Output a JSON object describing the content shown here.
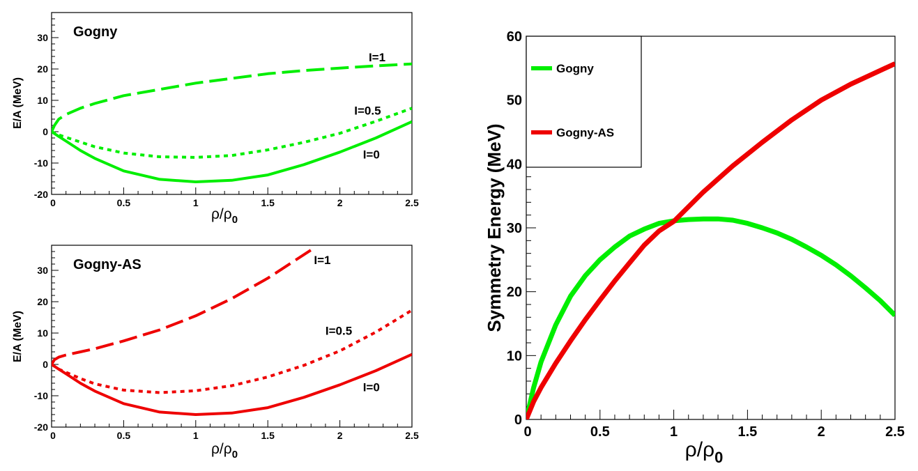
{
  "chart_data": [
    {
      "type": "line",
      "id": "gogny",
      "title": "Gogny",
      "xlabel": "ρ/ρ",
      "xlabel_sub": "0",
      "ylabel": "E/A (MeV)",
      "xlim": [
        0,
        2.5
      ],
      "ylim": [
        -20,
        38
      ],
      "xticks": [
        0,
        0.5,
        1,
        1.5,
        2,
        2.5
      ],
      "xtick_labels": [
        "0",
        "0.5",
        "1",
        "1.5",
        "2",
        "2.5"
      ],
      "yticks": [
        -20,
        -10,
        0,
        10,
        20,
        30
      ],
      "ytick_labels": [
        "-20",
        "-10",
        "0",
        "10",
        "20",
        "30"
      ],
      "series": [
        {
          "name": "I=1",
          "color": "#00ee00",
          "dash": "long",
          "x": [
            0,
            0.02,
            0.05,
            0.1,
            0.2,
            0.3,
            0.5,
            0.75,
            1.0,
            1.25,
            1.5,
            1.75,
            2.0,
            2.25,
            2.5
          ],
          "y": [
            0,
            2,
            4,
            5.5,
            7.5,
            9,
            11.5,
            13.5,
            15.5,
            17,
            18.5,
            19.5,
            20.3,
            21,
            21.6
          ]
        },
        {
          "name": "I=0.5",
          "color": "#00ee00",
          "dash": "dot",
          "x": [
            0,
            0.05,
            0.1,
            0.2,
            0.3,
            0.5,
            0.75,
            1.0,
            1.25,
            1.5,
            1.75,
            2.0,
            2.25,
            2.5
          ],
          "y": [
            0,
            -1,
            -1.8,
            -3.3,
            -4.8,
            -6.8,
            -8.0,
            -8.2,
            -7.6,
            -5.8,
            -3.4,
            -0.5,
            3.3,
            7.5
          ]
        },
        {
          "name": "I=0",
          "color": "#00ee00",
          "dash": "solid",
          "x": [
            0,
            0.05,
            0.1,
            0.2,
            0.3,
            0.5,
            0.75,
            1.0,
            1.25,
            1.5,
            1.75,
            2.0,
            2.25,
            2.5
          ],
          "y": [
            0,
            -1.5,
            -3,
            -6,
            -8.5,
            -12.5,
            -15.2,
            -16.0,
            -15.5,
            -13.8,
            -10.5,
            -6.5,
            -2.0,
            3.2
          ]
        }
      ],
      "annotations": [
        {
          "text": "I=1",
          "x": 2.2,
          "y": 22.5
        },
        {
          "text": "I=0.5",
          "x": 2.1,
          "y": 5.5
        },
        {
          "text": "I=0",
          "x": 2.16,
          "y": -8.5
        }
      ]
    },
    {
      "type": "line",
      "id": "gogny-as",
      "title": "Gogny-AS",
      "xlabel": "ρ/ρ",
      "xlabel_sub": "0",
      "ylabel": "E/A (MeV)",
      "xlim": [
        0,
        2.5
      ],
      "ylim": [
        -20,
        38
      ],
      "xticks": [
        0,
        0.5,
        1,
        1.5,
        2,
        2.5
      ],
      "xtick_labels": [
        "0",
        "0.5",
        "1",
        "1.5",
        "2",
        "2.5"
      ],
      "yticks": [
        -20,
        -10,
        0,
        10,
        20,
        30
      ],
      "ytick_labels": [
        "-20",
        "-10",
        "0",
        "10",
        "20",
        "30"
      ],
      "series": [
        {
          "name": "I=1",
          "color": "#ee0000",
          "dash": "long",
          "x": [
            0,
            0.02,
            0.05,
            0.1,
            0.2,
            0.3,
            0.5,
            0.75,
            1.0,
            1.25,
            1.5,
            1.8
          ],
          "y": [
            0,
            1.5,
            2.3,
            3.0,
            4.0,
            5.0,
            7.5,
            11.0,
            15.5,
            21.0,
            27.5,
            36.5
          ]
        },
        {
          "name": "I=0.5",
          "color": "#ee0000",
          "dash": "dot",
          "x": [
            0,
            0.05,
            0.1,
            0.2,
            0.3,
            0.5,
            0.75,
            1.0,
            1.25,
            1.5,
            1.75,
            2.0,
            2.25,
            2.5
          ],
          "y": [
            0,
            -1.5,
            -2.5,
            -4.5,
            -6.2,
            -8.2,
            -9.0,
            -8.4,
            -6.8,
            -4.0,
            -0.3,
            4.3,
            10.3,
            17.3
          ]
        },
        {
          "name": "I=0",
          "color": "#ee0000",
          "dash": "solid",
          "x": [
            0,
            0.05,
            0.1,
            0.2,
            0.3,
            0.5,
            0.75,
            1.0,
            1.25,
            1.5,
            1.75,
            2.0,
            2.25,
            2.5
          ],
          "y": [
            0,
            -1.5,
            -3,
            -6,
            -8.5,
            -12.5,
            -15.2,
            -16.0,
            -15.5,
            -13.8,
            -10.5,
            -6.5,
            -2.0,
            3.2
          ]
        }
      ],
      "annotations": [
        {
          "text": "I=1",
          "x": 1.82,
          "y": 32
        },
        {
          "text": "I=0.5",
          "x": 1.9,
          "y": 9.5
        },
        {
          "text": "I=0",
          "x": 2.16,
          "y": -8.5
        }
      ]
    },
    {
      "type": "line",
      "id": "symmetry",
      "title": "",
      "xlabel": "ρ/ρ",
      "xlabel_sub": "0",
      "ylabel": "Symmetry Energy (MeV)",
      "xlim": [
        0,
        2.5
      ],
      "ylim": [
        0,
        60
      ],
      "xticks": [
        0,
        0.5,
        1,
        1.5,
        2,
        2.5
      ],
      "xtick_labels": [
        "0",
        "0.5",
        "1",
        "1.5",
        "2",
        "2.5"
      ],
      "yticks": [
        0,
        10,
        20,
        30,
        40,
        50,
        60
      ],
      "ytick_labels": [
        "0",
        "10",
        "20",
        "30",
        "40",
        "50",
        "60"
      ],
      "legend_position": "top-left",
      "series": [
        {
          "name": "Gogny",
          "color": "#00ee00",
          "dash": "solid",
          "x": [
            0,
            0.05,
            0.1,
            0.2,
            0.3,
            0.4,
            0.5,
            0.6,
            0.7,
            0.8,
            0.9,
            1.0,
            1.1,
            1.2,
            1.3,
            1.4,
            1.5,
            1.6,
            1.7,
            1.8,
            1.9,
            2.0,
            2.1,
            2.2,
            2.3,
            2.4,
            2.5
          ],
          "y": [
            0,
            5,
            9,
            14.8,
            19.3,
            22.5,
            25.0,
            27.0,
            28.7,
            29.8,
            30.7,
            31.1,
            31.3,
            31.4,
            31.4,
            31.2,
            30.7,
            30.0,
            29.2,
            28.2,
            27.0,
            25.7,
            24.2,
            22.5,
            20.6,
            18.6,
            16.3
          ]
        },
        {
          "name": "Gogny-AS",
          "color": "#ee0000",
          "dash": "solid",
          "x": [
            0,
            0.05,
            0.1,
            0.2,
            0.3,
            0.4,
            0.5,
            0.6,
            0.7,
            0.8,
            0.9,
            1.0,
            1.2,
            1.4,
            1.6,
            1.8,
            2.0,
            2.2,
            2.5
          ],
          "y": [
            0,
            2.8,
            5.0,
            8.8,
            12.3,
            15.6,
            18.7,
            21.7,
            24.5,
            27.3,
            29.5,
            31.0,
            35.6,
            39.7,
            43.4,
            46.9,
            50.0,
            52.5,
            55.7
          ]
        }
      ]
    }
  ]
}
